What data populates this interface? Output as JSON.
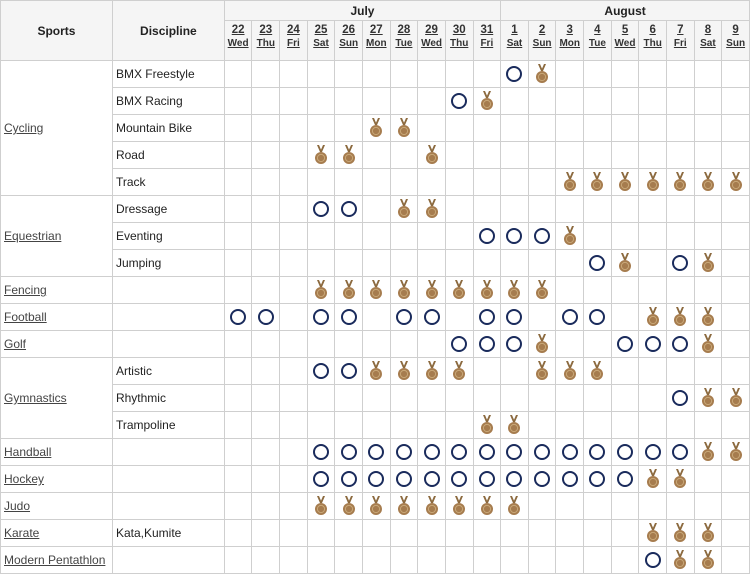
{
  "header": {
    "sports_label": "Sports",
    "discipline_label": "Discipline",
    "months": [
      {
        "label": "July",
        "span": 10
      },
      {
        "label": "August",
        "span": 9
      }
    ],
    "days": [
      {
        "num": "22",
        "dow": "Wed"
      },
      {
        "num": "23",
        "dow": "Thu"
      },
      {
        "num": "24",
        "dow": "Fri"
      },
      {
        "num": "25",
        "dow": "Sat"
      },
      {
        "num": "26",
        "dow": "Sun"
      },
      {
        "num": "27",
        "dow": "Mon"
      },
      {
        "num": "28",
        "dow": "Tue"
      },
      {
        "num": "29",
        "dow": "Wed"
      },
      {
        "num": "30",
        "dow": "Thu"
      },
      {
        "num": "31",
        "dow": "Fri"
      },
      {
        "num": "1",
        "dow": "Sat"
      },
      {
        "num": "2",
        "dow": "Sun"
      },
      {
        "num": "3",
        "dow": "Mon"
      },
      {
        "num": "4",
        "dow": "Tue"
      },
      {
        "num": "5",
        "dow": "Wed"
      },
      {
        "num": "6",
        "dow": "Thu"
      },
      {
        "num": "7",
        "dow": "Fri"
      },
      {
        "num": "8",
        "dow": "Sat"
      },
      {
        "num": "9",
        "dow": "Sun"
      }
    ]
  },
  "legend_codes": {
    "O": "event-session",
    "M": "medal-event"
  },
  "colors": {
    "ring": "#1a2b5c",
    "medal": "#a67c4e",
    "ribbon": "#8c6a3f"
  },
  "sports": [
    {
      "name": "Cycling",
      "rows": [
        {
          "discipline": "BMX Freestyle",
          "cells": [
            "",
            "",
            "",
            "",
            "",
            "",
            "",
            "",
            "",
            "",
            "O",
            "M",
            "",
            "",
            "",
            "",
            "",
            "",
            ""
          ]
        },
        {
          "discipline": "BMX Racing",
          "cells": [
            "",
            "",
            "",
            "",
            "",
            "",
            "",
            "",
            "O",
            "M",
            "",
            "",
            "",
            "",
            "",
            "",
            "",
            "",
            ""
          ]
        },
        {
          "discipline": "Mountain Bike",
          "cells": [
            "",
            "",
            "",
            "",
            "",
            "M",
            "M",
            "",
            "",
            "",
            "",
            "",
            "",
            "",
            "",
            "",
            "",
            "",
            ""
          ]
        },
        {
          "discipline": "Road",
          "cells": [
            "",
            "",
            "",
            "M",
            "M",
            "",
            "",
            "M",
            "",
            "",
            "",
            "",
            "",
            "",
            "",
            "",
            "",
            "",
            ""
          ]
        },
        {
          "discipline": "Track",
          "cells": [
            "",
            "",
            "",
            "",
            "",
            "",
            "",
            "",
            "",
            "",
            "",
            "",
            "M",
            "M",
            "M",
            "M",
            "M",
            "M",
            "M"
          ]
        }
      ]
    },
    {
      "name": "Equestrian",
      "rows": [
        {
          "discipline": "Dressage",
          "cells": [
            "",
            "",
            "",
            "O",
            "O",
            "",
            "M",
            "M",
            "",
            "",
            "",
            "",
            "",
            "",
            "",
            "",
            "",
            "",
            ""
          ]
        },
        {
          "discipline": "Eventing",
          "cells": [
            "",
            "",
            "",
            "",
            "",
            "",
            "",
            "",
            "",
            "O",
            "O",
            "O",
            "M",
            "",
            "",
            "",
            "",
            "",
            ""
          ]
        },
        {
          "discipline": "Jumping",
          "cells": [
            "",
            "",
            "",
            "",
            "",
            "",
            "",
            "",
            "",
            "",
            "",
            "",
            "",
            "O",
            "M",
            "",
            "O",
            "M",
            ""
          ]
        }
      ]
    },
    {
      "name": "Fencing",
      "rows": [
        {
          "discipline": "",
          "cells": [
            "",
            "",
            "",
            "M",
            "M",
            "M",
            "M",
            "M",
            "M",
            "M",
            "M",
            "M",
            "",
            "",
            "",
            "",
            "",
            "",
            ""
          ]
        }
      ]
    },
    {
      "name": "Football",
      "rows": [
        {
          "discipline": "",
          "cells": [
            "O",
            "O",
            "",
            "O",
            "O",
            "",
            "O",
            "O",
            "",
            "O",
            "O",
            "",
            "O",
            "O",
            "",
            "M",
            "M",
            "M",
            ""
          ]
        }
      ]
    },
    {
      "name": "Golf",
      "rows": [
        {
          "discipline": "",
          "cells": [
            "",
            "",
            "",
            "",
            "",
            "",
            "",
            "",
            "O",
            "O",
            "O",
            "M",
            "",
            "",
            "O",
            "O",
            "O",
            "M",
            ""
          ]
        }
      ]
    },
    {
      "name": "Gymnastics",
      "rows": [
        {
          "discipline": "Artistic",
          "cells": [
            "",
            "",
            "",
            "O",
            "O",
            "M",
            "M",
            "M",
            "M",
            "",
            "",
            "M",
            "M",
            "M",
            "",
            "",
            "",
            "",
            ""
          ]
        },
        {
          "discipline": "Rhythmic",
          "cells": [
            "",
            "",
            "",
            "",
            "",
            "",
            "",
            "",
            "",
            "",
            "",
            "",
            "",
            "",
            "",
            "",
            "O",
            "M",
            "M"
          ]
        },
        {
          "discipline": "Trampoline",
          "cells": [
            "",
            "",
            "",
            "",
            "",
            "",
            "",
            "",
            "",
            "M",
            "M",
            "",
            "",
            "",
            "",
            "",
            "",
            "",
            ""
          ]
        }
      ]
    },
    {
      "name": "Handball",
      "rows": [
        {
          "discipline": "",
          "cells": [
            "",
            "",
            "",
            "O",
            "O",
            "O",
            "O",
            "O",
            "O",
            "O",
            "O",
            "O",
            "O",
            "O",
            "O",
            "O",
            "O",
            "M",
            "M"
          ]
        }
      ]
    },
    {
      "name": "Hockey",
      "rows": [
        {
          "discipline": "",
          "cells": [
            "",
            "",
            "",
            "O",
            "O",
            "O",
            "O",
            "O",
            "O",
            "O",
            "O",
            "O",
            "O",
            "O",
            "O",
            "M",
            "M",
            "",
            ""
          ]
        }
      ]
    },
    {
      "name": "Judo",
      "rows": [
        {
          "discipline": "",
          "cells": [
            "",
            "",
            "",
            "M",
            "M",
            "M",
            "M",
            "M",
            "M",
            "M",
            "M",
            "",
            "",
            "",
            "",
            "",
            "",
            "",
            ""
          ]
        }
      ]
    },
    {
      "name": "Karate",
      "rows": [
        {
          "discipline": "Kata,Kumite",
          "cells": [
            "",
            "",
            "",
            "",
            "",
            "",
            "",
            "",
            "",
            "",
            "",
            "",
            "",
            "",
            "",
            "M",
            "M",
            "M",
            ""
          ]
        }
      ]
    },
    {
      "name": "Modern Pentathlon",
      "rows": [
        {
          "discipline": "",
          "cells": [
            "",
            "",
            "",
            "",
            "",
            "",
            "",
            "",
            "",
            "",
            "",
            "",
            "",
            "",
            "",
            "O",
            "M",
            "M",
            ""
          ]
        }
      ]
    }
  ]
}
